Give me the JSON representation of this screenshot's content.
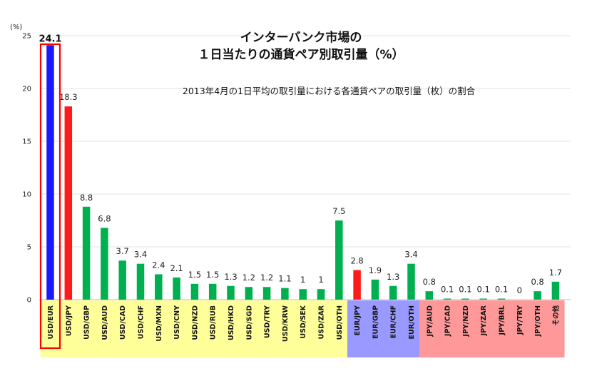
{
  "chart_data": {
    "type": "bar",
    "title_line1": "インターバンク市場の",
    "title_line2": "１日当たりの通貨ペア別取引量（%）",
    "subtitle": "2013年4月の1日平均の取引量における各通貨ペアの取引量（枚）の割合",
    "ylabel": "(%)",
    "ylim": [
      0,
      25
    ],
    "yticks": [
      0,
      5,
      10,
      15,
      20,
      25
    ],
    "categories": [
      "USD/EUR",
      "USD/JPY",
      "USD/GBP",
      "USD/AUD",
      "USD/CAD",
      "USD/CHF",
      "USD/MXN",
      "USD/CNY",
      "USD/NZD",
      "USD/RUB",
      "USD/HKD",
      "USD/SGD",
      "USD/TRY",
      "USD/KRW",
      "USD/SEK",
      "USD/ZAR",
      "USD/OTH",
      "EUR/JPY",
      "EUR/GBP",
      "EUR/CHF",
      "EUR/OTH",
      "JPY/AUD",
      "JPY/CAD",
      "JPY/NZD",
      "JPY/ZAR",
      "JPY/BRL",
      "JPY/TRY",
      "JPY/OTH",
      "その他"
    ],
    "values": [
      24.1,
      18.3,
      8.8,
      6.8,
      3.7,
      3.4,
      2.4,
      2.1,
      1.5,
      1.5,
      1.3,
      1.2,
      1.2,
      1.1,
      1,
      1,
      7.5,
      2.8,
      1.9,
      1.3,
      3.4,
      0.8,
      0.1,
      0.1,
      0.1,
      0.1,
      0,
      0.8,
      1.7
    ],
    "value_labels": [
      "24.1",
      "18.3",
      "8.8",
      "6.8",
      "3.7",
      "3.4",
      "2.4",
      "2.1",
      "1.5",
      "1.5",
      "1.3",
      "1.2",
      "1.2",
      "1.1",
      "1",
      "1",
      "7.5",
      "2.8",
      "1.9",
      "1.3",
      "3.4",
      "0.8",
      "0.1",
      "0.1",
      "0.1",
      "0.1",
      "0",
      "0.8",
      "1.7"
    ],
    "bar_colors": {
      "USD/EUR": "#1a1aff",
      "USD/JPY": "#ff1a1a",
      "EUR/JPY": "#ff1a1a",
      "default": "#00b050"
    },
    "group_backgrounds": [
      {
        "from": 0,
        "to": 16,
        "color": "#ffff99"
      },
      {
        "from": 17,
        "to": 20,
        "color": "#9999ff"
      },
      {
        "from": 21,
        "to": 28,
        "color": "#ff9999"
      }
    ],
    "highlight": {
      "category": "USD/EUR",
      "color": "#ff0000"
    },
    "grid": true,
    "legend": "none"
  }
}
